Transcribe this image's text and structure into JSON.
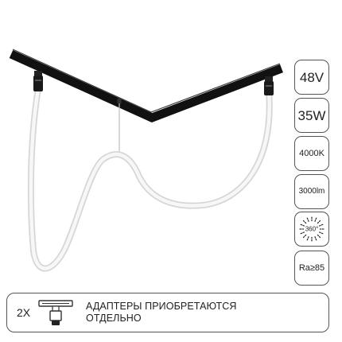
{
  "specs": {
    "voltage": "48V",
    "power": "35W",
    "color_temperature": "4000K",
    "luminous_flux": "3000lm",
    "beam_angle": "360°",
    "color_rendering": "Ra≥85"
  },
  "note": {
    "quantity": "2X",
    "line1": "АДАПТЕРЫ ПРИОБРЕТАЮТСЯ",
    "line2": "ОТДЕЛЬНО"
  },
  "icons": {
    "beam": "360-degree-beam-icon",
    "adapter": "track-adapter-icon"
  },
  "colors": {
    "track": "#111111",
    "border": "#555555",
    "text": "#222222",
    "tube": "#e4e4e4"
  }
}
